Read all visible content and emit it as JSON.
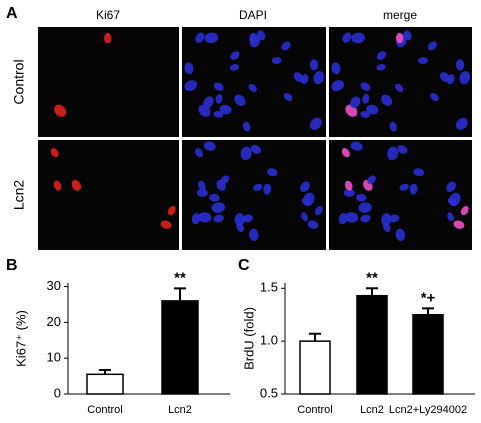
{
  "panel_a": {
    "label": "A",
    "columns": [
      "Ki67",
      "DAPI",
      "merge"
    ],
    "rows": [
      "Control",
      "Lcn2"
    ]
  },
  "chart_data": [
    {
      "type": "bar",
      "label": "B",
      "ylabel": "Ki67⁺ (%)",
      "categories": [
        "Control",
        "Lcn2"
      ],
      "values": [
        5.5,
        26
      ],
      "errors": [
        1.2,
        3.5
      ],
      "colors": [
        "#ffffff",
        "#000000"
      ],
      "ylim": [
        0,
        31
      ],
      "yticks": [
        0,
        10,
        20,
        30
      ],
      "annotations": [
        {
          "category": "Lcn2",
          "text": "**"
        }
      ]
    },
    {
      "type": "bar",
      "label": "C",
      "ylabel": "BrdU (fold)",
      "categories": [
        "Control",
        "Lcn2",
        "Lcn2+Ly294002"
      ],
      "values": [
        1.0,
        1.43,
        1.25
      ],
      "errors": [
        0.07,
        0.07,
        0.06
      ],
      "colors": [
        "#ffffff",
        "#000000",
        "#000000"
      ],
      "ylim": [
        0.5,
        1.55
      ],
      "yticks": [
        0.5,
        {
          "value": 1,
          "label": "1.0"
        },
        1.5
      ],
      "annotations": [
        {
          "category": "Lcn2",
          "text": "**"
        },
        {
          "category": "Lcn2+Ly294002",
          "text": "*+"
        }
      ]
    }
  ]
}
